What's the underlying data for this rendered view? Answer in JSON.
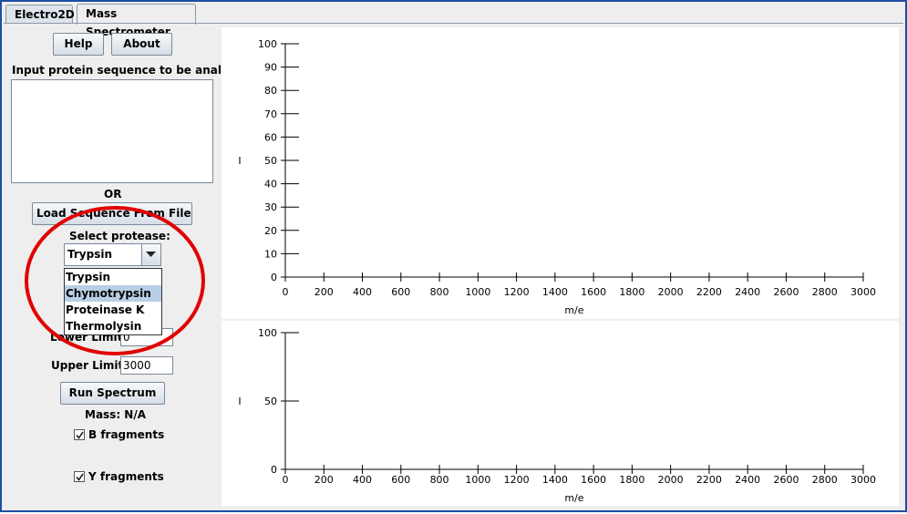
{
  "tabs": [
    {
      "label": "Electro2D",
      "active": false
    },
    {
      "label": "Mass Spectrometer",
      "active": true
    }
  ],
  "sidebar": {
    "help_label": "Help",
    "about_label": "About",
    "input_label": "Input protein sequence to be analyzed:",
    "sequence_value": "",
    "or_label": "OR",
    "load_label": "Load Sequence From File",
    "protease_label": "Select protease:",
    "protease_selected": "Trypsin",
    "protease_options": [
      "Trypsin",
      "Chymotrypsin",
      "Proteinase K",
      "Thermolysin"
    ],
    "highlighted_option": "Chymotrypsin",
    "lower_limit_label": "Lower Limit:",
    "lower_limit_value": "0",
    "upper_limit_label": "Upper Limit:",
    "upper_limit_value": "3000",
    "run_label": "Run Spectrum",
    "mass_label": "Mass: N/A",
    "b_fragments_label": "B fragments",
    "b_fragments_checked": true,
    "y_fragments_label": "Y fragments",
    "y_fragments_checked": true
  },
  "chart_data": [
    {
      "type": "line",
      "xlabel": "m/e",
      "ylabel": "I",
      "xlim": [
        0,
        3000
      ],
      "ylim": [
        0,
        100
      ],
      "x_ticks": [
        0,
        200,
        400,
        600,
        800,
        1000,
        1200,
        1400,
        1600,
        1800,
        2000,
        2200,
        2400,
        2600,
        2800,
        3000
      ],
      "y_ticks": [
        0,
        10,
        20,
        30,
        40,
        50,
        60,
        70,
        80,
        90,
        100
      ],
      "series": []
    },
    {
      "type": "line",
      "xlabel": "m/e",
      "ylabel": "I",
      "xlim": [
        0,
        3000
      ],
      "ylim": [
        0,
        100
      ],
      "x_ticks": [
        0,
        200,
        400,
        600,
        800,
        1000,
        1200,
        1400,
        1600,
        1800,
        2000,
        2200,
        2400,
        2600,
        2800,
        3000
      ],
      "y_ticks": [
        0,
        50,
        100
      ],
      "series": []
    }
  ],
  "colors": {
    "window_border": "#1c4fa3",
    "panel_bg": "#eeeeee",
    "selection": "#b8cfe5",
    "annotation_circle": "#e00000"
  }
}
